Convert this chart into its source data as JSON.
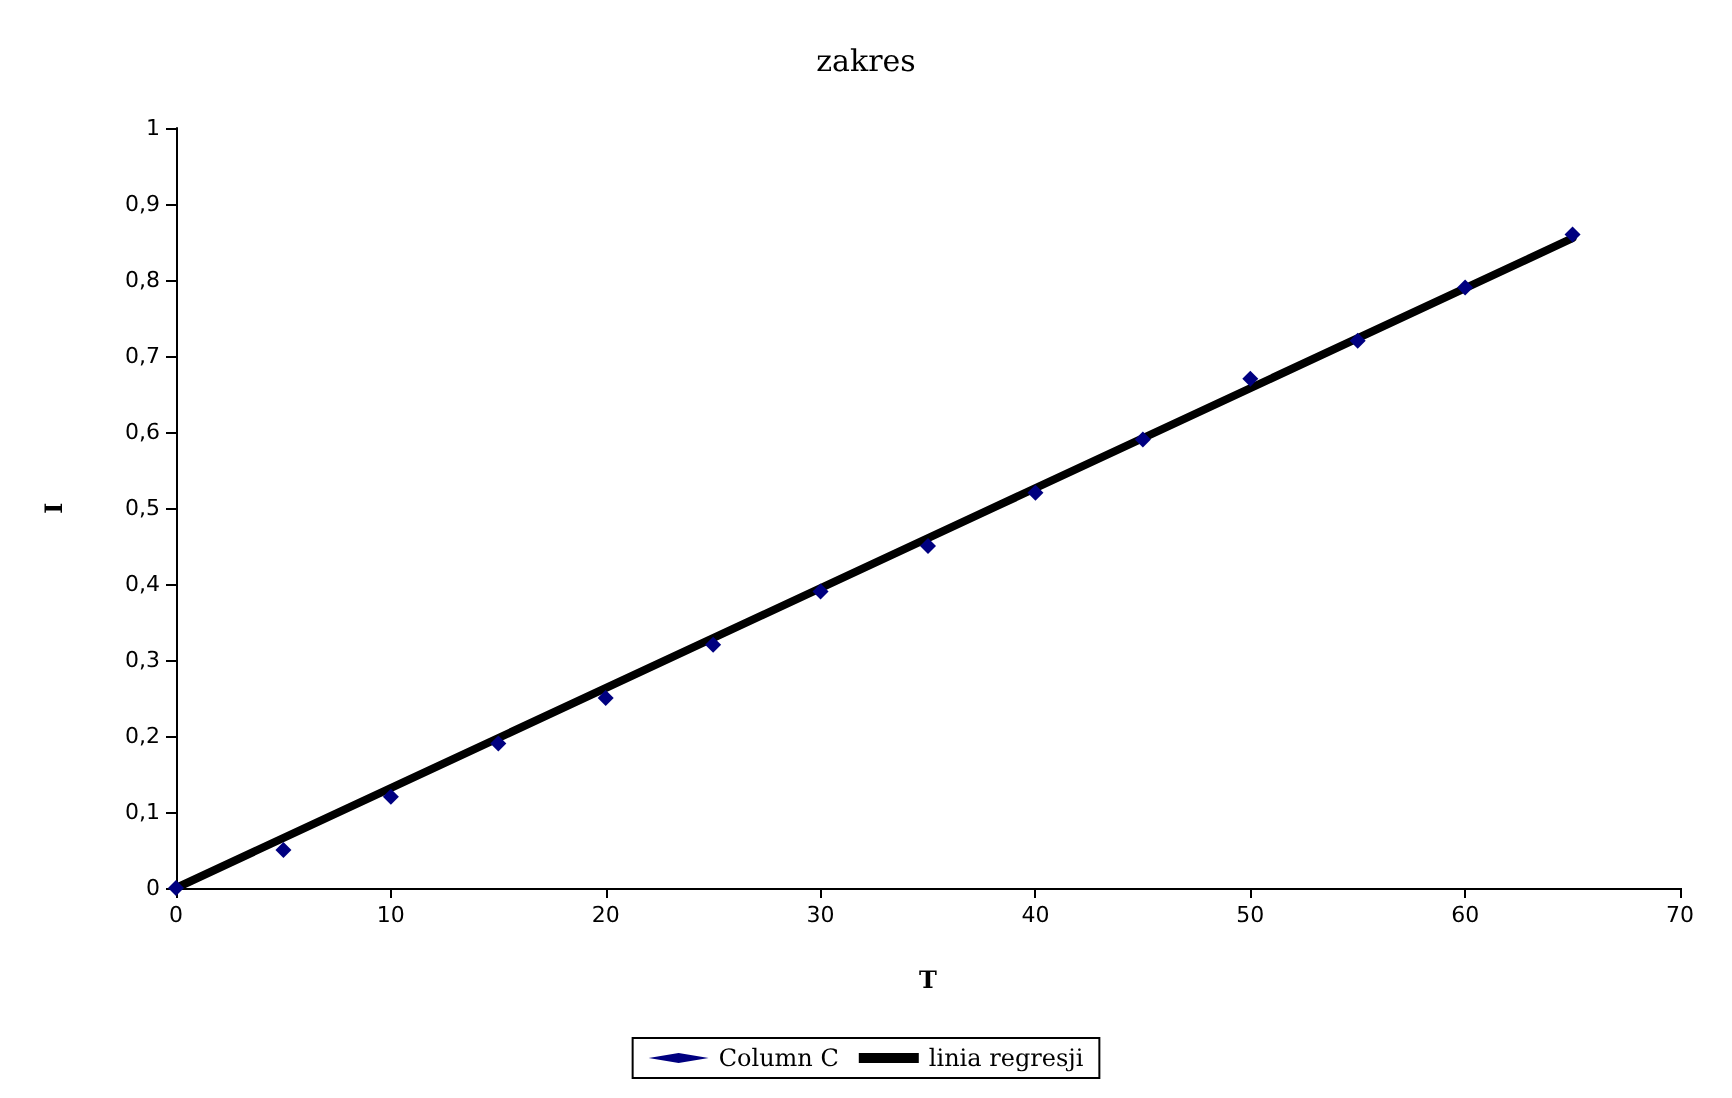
{
  "chart_data": {
    "type": "scatter",
    "title": "zakres",
    "xlabel": "T",
    "ylabel": "I",
    "xlim": [
      0,
      70
    ],
    "xticks": [
      0,
      10,
      20,
      30,
      40,
      50,
      60,
      70
    ],
    "ylim": [
      0,
      1
    ],
    "yticks": [
      0,
      {
        "value": 0.1,
        "label": "0,1"
      },
      {
        "value": 0.2,
        "label": "0,2"
      },
      {
        "value": 0.3,
        "label": "0,3"
      },
      {
        "value": 0.4,
        "label": "0,4"
      },
      {
        "value": 0.5,
        "label": "0,5"
      },
      {
        "value": 0.6,
        "label": "0,6"
      },
      {
        "value": 0.7,
        "label": "0,7"
      },
      {
        "value": 0.8,
        "label": "0,8"
      },
      {
        "value": 0.9,
        "label": "0,9"
      },
      1
    ],
    "grid": false,
    "legend": "bottom",
    "series": [
      {
        "name": "Column C",
        "marker": "diamond",
        "color": "#000080",
        "x": [
          0,
          5,
          10,
          15,
          20,
          25,
          30,
          35,
          40,
          45,
          50,
          55,
          60,
          65
        ],
        "values": [
          0,
          0.05,
          0.12,
          0.19,
          0.25,
          0.32,
          0.39,
          0.45,
          0.52,
          0.59,
          0.67,
          0.72,
          0.79,
          0.86
        ]
      },
      {
        "name": "linia regresji",
        "type": "line",
        "color": "#000000",
        "marker": "none",
        "line_style": "solid",
        "x": [
          0,
          65
        ],
        "values": [
          0,
          0.855
        ]
      }
    ]
  }
}
